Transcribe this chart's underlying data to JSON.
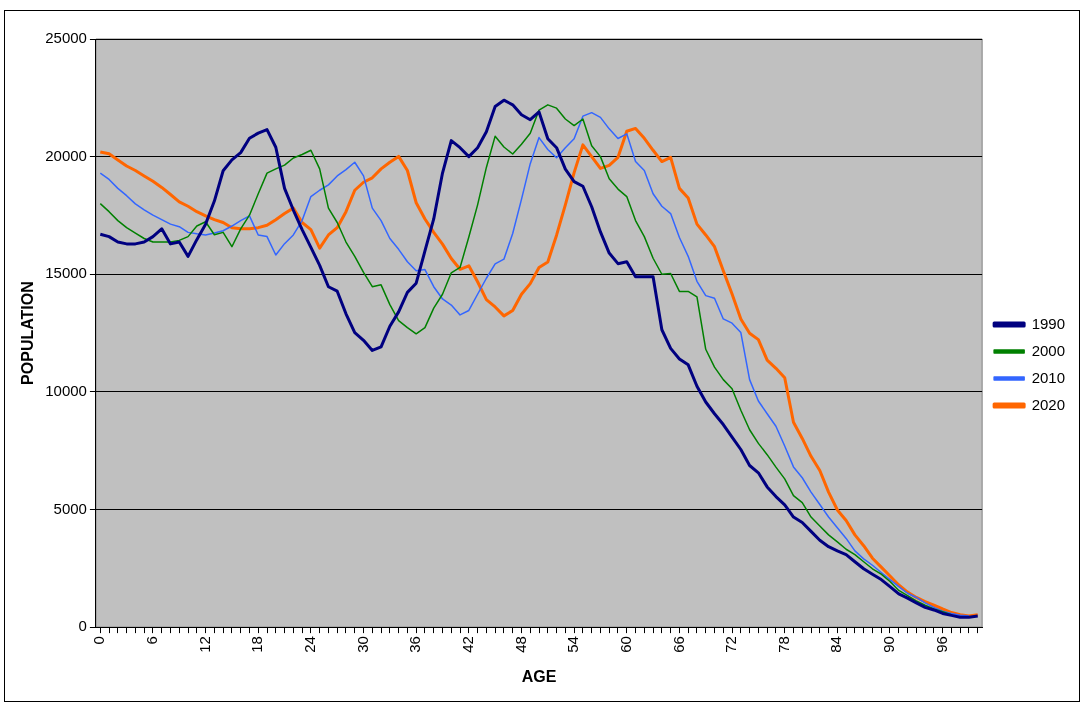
{
  "chart_data": {
    "type": "line",
    "xlabel": "AGE",
    "ylabel": "POPULATION",
    "categories": [
      "0",
      null,
      null,
      null,
      null,
      null,
      "6",
      null,
      null,
      null,
      null,
      null,
      "12",
      null,
      null,
      null,
      null,
      null,
      "18",
      null,
      null,
      null,
      null,
      null,
      "24",
      null,
      null,
      null,
      null,
      null,
      "30",
      null,
      null,
      null,
      null,
      null,
      "36",
      null,
      null,
      null,
      null,
      null,
      "42",
      null,
      null,
      null,
      null,
      null,
      "48",
      null,
      null,
      null,
      null,
      null,
      "54",
      null,
      null,
      null,
      null,
      null,
      "60",
      null,
      null,
      null,
      null,
      null,
      "66",
      null,
      null,
      null,
      null,
      null,
      "72",
      null,
      null,
      null,
      null,
      null,
      "78",
      null,
      null,
      null,
      null,
      null,
      "84",
      null,
      null,
      null,
      null,
      null,
      "90",
      null,
      null,
      null,
      null,
      null,
      "96",
      null,
      null,
      null,
      null
    ],
    "series": [
      {
        "name": "1990",
        "color": "#000080",
        "values": [
          16700,
          16600,
          16370,
          16290,
          16290,
          16370,
          16600,
          16930,
          16290,
          16370,
          15760,
          16470,
          17130,
          18110,
          19400,
          19860,
          20170,
          20780,
          21000,
          21150,
          20400,
          18650,
          17730,
          16900,
          16140,
          15380,
          14470,
          14280,
          13320,
          12520,
          12190,
          11760,
          11910,
          12790,
          13400,
          14230,
          14620,
          15990,
          17350,
          19300,
          20680,
          20380,
          20000,
          20380,
          21060,
          22130,
          22400,
          22200,
          21780,
          21570,
          21900,
          20760,
          20380,
          19470,
          18940,
          18740,
          17870,
          16800,
          15900,
          15450,
          15530,
          14890,
          14890,
          14890,
          12640,
          11850,
          11400,
          11150,
          10240,
          9570,
          9070,
          8610,
          8080,
          7550,
          6870,
          6560,
          5960,
          5550,
          5200,
          4680,
          4450,
          4070,
          3690,
          3420,
          3240,
          3080,
          2780,
          2480,
          2250,
          2020,
          1720,
          1410,
          1230,
          1030,
          840,
          730,
          580,
          500,
          420,
          420,
          470
        ]
      },
      {
        "name": "2000",
        "color": "#008000",
        "values": [
          18000,
          17660,
          17280,
          16980,
          16750,
          16520,
          16370,
          16370,
          16370,
          16440,
          16600,
          17050,
          17230,
          16680,
          16780,
          16170,
          16930,
          17510,
          18420,
          19300,
          19480,
          19640,
          19940,
          20090,
          20270,
          19480,
          17810,
          17200,
          16370,
          15760,
          15080,
          14470,
          14550,
          13710,
          13030,
          12730,
          12470,
          12730,
          13560,
          14150,
          15060,
          15290,
          16580,
          17950,
          19540,
          20870,
          20410,
          20110,
          20530,
          20990,
          21980,
          22200,
          22060,
          21600,
          21320,
          21600,
          20460,
          20000,
          19060,
          18620,
          18300,
          17280,
          16600,
          15680,
          15000,
          15030,
          14270,
          14270,
          14040,
          11810,
          11050,
          10520,
          10130,
          9220,
          8390,
          7810,
          7330,
          6800,
          6300,
          5590,
          5290,
          4680,
          4300,
          3920,
          3620,
          3310,
          3080,
          2780,
          2480,
          2250,
          1940,
          1560,
          1340,
          1110,
          930,
          770,
          650,
          530,
          null,
          null,
          null
        ]
      },
      {
        "name": "2010",
        "color": "#3366ff",
        "values": [
          19300,
          19030,
          18650,
          18340,
          17990,
          17740,
          17510,
          17320,
          17130,
          17020,
          16780,
          16720,
          16670,
          16750,
          16850,
          17050,
          17280,
          17480,
          16670,
          16600,
          15820,
          16300,
          16670,
          17280,
          18300,
          18570,
          18800,
          19180,
          19450,
          19760,
          19180,
          17810,
          17280,
          16520,
          16060,
          15530,
          15150,
          15200,
          14470,
          13950,
          13690,
          13270,
          13460,
          14150,
          14830,
          15440,
          15640,
          16730,
          18180,
          19700,
          20810,
          20300,
          19950,
          20380,
          20760,
          21720,
          21870,
          21670,
          21180,
          20770,
          20970,
          19790,
          19410,
          18420,
          17890,
          17580,
          16560,
          15760,
          14700,
          14090,
          13980,
          13100,
          12920,
          12520,
          10520,
          9610,
          9070,
          8540,
          7700,
          6810,
          6350,
          5740,
          5210,
          4680,
          4220,
          3770,
          3240,
          2900,
          2630,
          2320,
          2020,
          1720,
          1440,
          1260,
          1030,
          840,
          680,
          580,
          500,
          470,
          null
        ]
      },
      {
        "name": "2020",
        "color": "#ff6600",
        "values": [
          20200,
          20120,
          19860,
          19600,
          19410,
          19180,
          18950,
          18690,
          18390,
          18080,
          17890,
          17660,
          17480,
          17320,
          17200,
          16980,
          16930,
          16930,
          16980,
          17080,
          17320,
          17580,
          17810,
          17200,
          16900,
          16110,
          16670,
          16980,
          17660,
          18570,
          18910,
          19100,
          19480,
          19760,
          20010,
          19410,
          18040,
          17350,
          16780,
          16280,
          15670,
          15210,
          15360,
          14680,
          13920,
          13610,
          13230,
          13460,
          14150,
          14600,
          15290,
          15520,
          16660,
          17950,
          19320,
          20500,
          20000,
          19500,
          19630,
          19970,
          21080,
          21200,
          20780,
          20270,
          19790,
          19970,
          18650,
          18240,
          17130,
          16670,
          16170,
          15150,
          14160,
          13100,
          12490,
          12220,
          11350,
          11000,
          10600,
          8710,
          8020,
          7260,
          6660,
          5740,
          4980,
          4530,
          3920,
          3460,
          2930,
          2550,
          2170,
          1790,
          1490,
          1260,
          1080,
          930,
          770,
          620,
          530,
          470,
          530
        ]
      }
    ],
    "ylim": [
      0,
      25000
    ],
    "yticks": [
      0,
      5000,
      10000,
      15000,
      20000,
      25000
    ],
    "grid": "y",
    "legend": "right",
    "marker": "none",
    "line_style": "solid"
  }
}
